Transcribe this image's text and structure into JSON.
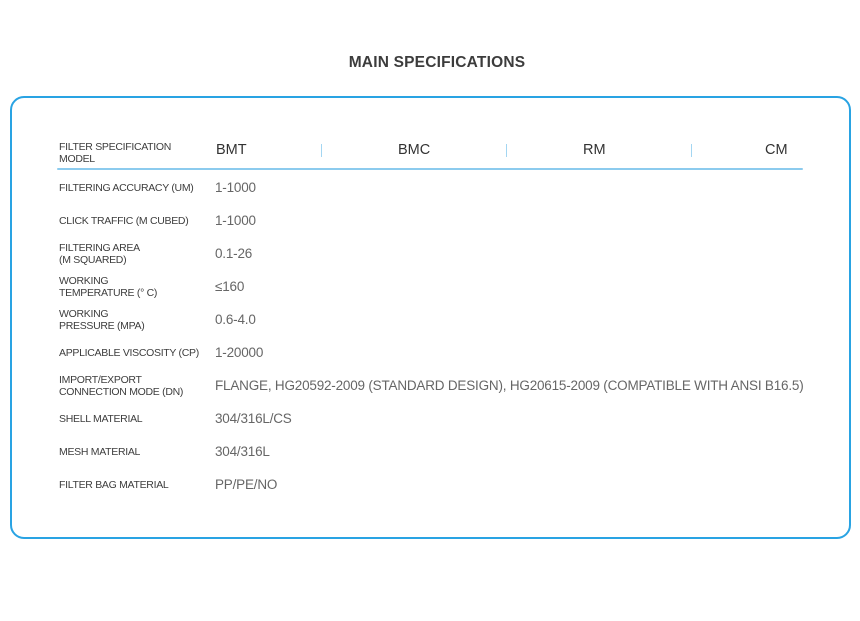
{
  "page": {
    "title": "MAIN SPECIFICATIONS"
  },
  "table": {
    "header": {
      "row_label": "FILTER SPECIFICATION\nMODEL",
      "columns": [
        "BMT",
        "BMC",
        "RM",
        "CM"
      ]
    },
    "rows": [
      {
        "label": "FILTERING ACCURACY (UM)",
        "value": "1-1000"
      },
      {
        "label": "CLICK TRAFFIC (M CUBED)",
        "value": "1-1000"
      },
      {
        "label": "FILTERING AREA\n (M SQUARED)",
        "value": "0.1-26"
      },
      {
        "label": "WORKING\nTEMPERATURE (° C)",
        "value": "≤160"
      },
      {
        "label": "WORKING\nPRESSURE (MPA)",
        "value": "0.6-4.0"
      },
      {
        "label": "APPLICABLE VISCOSITY (CP)",
        "value": "1-20000"
      },
      {
        "label": "IMPORT/EXPORT\nCONNECTION MODE (DN)",
        "value": "FLANGE, HG20592-2009 (STANDARD DESIGN), HG20615-2009 (COMPATIBLE WITH ANSI B16.5)"
      },
      {
        "label": "SHELL MATERIAL",
        "value": "304/316L/CS"
      },
      {
        "label": "MESH MATERIAL",
        "value": "304/316L"
      },
      {
        "label": "FILTER BAG MATERIAL",
        "value": "PP/PE/NO"
      }
    ]
  },
  "colors": {
    "panel_border": "#29a3e3",
    "header_underline": "#8ccbee",
    "column_separator": "#a3d6f2",
    "label_text": "#3d3d3d",
    "value_text": "#666666",
    "title_text": "#3c3c3c"
  }
}
